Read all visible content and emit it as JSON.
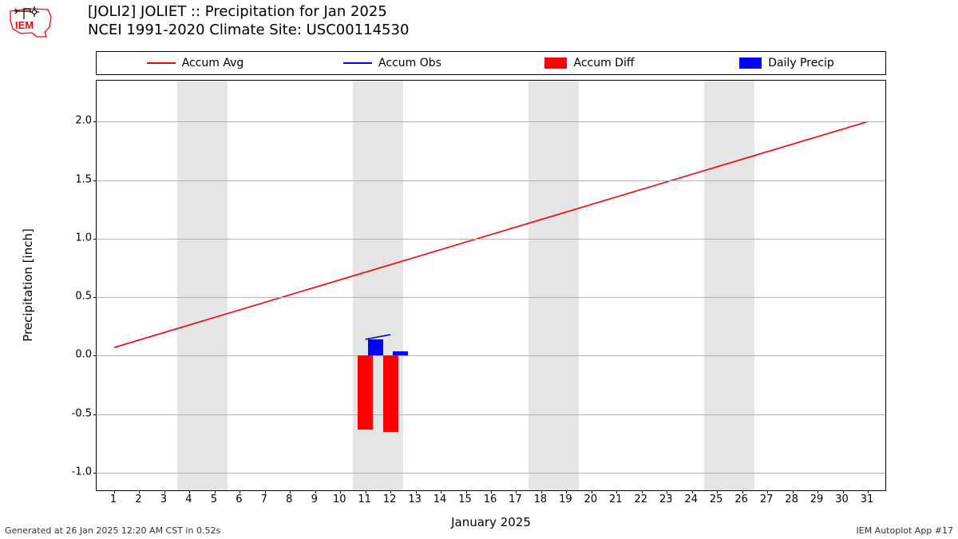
{
  "title_line1": "[JOLI2] JOLIET :: Precipitation for Jan 2025",
  "title_line2": "NCEI 1991-2020 Climate Site: USC00114530",
  "ylabel": "Precipitation [inch]",
  "xlabel": "January 2025",
  "footer_left": "Generated at 26 Jan 2025 12:20 AM CST in 0.52s",
  "footer_right": "IEM Autoplot App #17",
  "legend": {
    "items": [
      {
        "label": "Accum Avg",
        "type": "line",
        "color": "#ff0000"
      },
      {
        "label": "Accum Obs",
        "type": "line",
        "color": "#0000ff"
      },
      {
        "label": "Accum Diff",
        "type": "patch",
        "color": "#ff0000"
      },
      {
        "label": "Daily Precip",
        "type": "patch",
        "color": "#0000ff"
      }
    ]
  },
  "chart": {
    "x_min": 0.3,
    "x_max": 31.7,
    "y_min": -1.15,
    "y_max": 2.35,
    "y_ticks": [
      -1.0,
      -0.5,
      0.0,
      0.5,
      1.0,
      1.5,
      2.0
    ],
    "x_ticks": [
      1,
      2,
      3,
      4,
      5,
      6,
      7,
      8,
      9,
      10,
      11,
      12,
      13,
      14,
      15,
      16,
      17,
      18,
      19,
      20,
      21,
      22,
      23,
      24,
      25,
      26,
      27,
      28,
      29,
      30,
      31
    ],
    "grid_color": "#b0b0b0",
    "weekend_color": "#e5e5e5",
    "weekend_bands": [
      {
        "start": 3.5,
        "end": 5.5
      },
      {
        "start": 10.5,
        "end": 12.5
      },
      {
        "start": 17.5,
        "end": 19.5
      },
      {
        "start": 24.5,
        "end": 26.5
      }
    ],
    "accum_avg": {
      "color": "#ff0000",
      "width": 1.6,
      "points": [
        {
          "x": 1,
          "y": 0.07
        },
        {
          "x": 31,
          "y": 2.0
        }
      ]
    },
    "accum_obs": {
      "color": "#0000ff",
      "width": 1.6,
      "points": [
        {
          "x": 11,
          "y": 0.14
        },
        {
          "x": 12,
          "y": 0.18
        }
      ]
    },
    "diff_bars": {
      "color": "#ff0000",
      "width": 0.6,
      "data": [
        {
          "x": 11,
          "y": -0.63
        },
        {
          "x": 12,
          "y": -0.65
        }
      ]
    },
    "precip_bars": {
      "color": "#0000ff",
      "width": 0.6,
      "data": [
        {
          "x": 11.4,
          "y": 0.14
        },
        {
          "x": 12.4,
          "y": 0.04
        }
      ]
    }
  },
  "logo": {
    "outline_color": "#ff0000",
    "text": "IEM",
    "text_color": "#ff0000",
    "instrument_color": "#000000"
  }
}
